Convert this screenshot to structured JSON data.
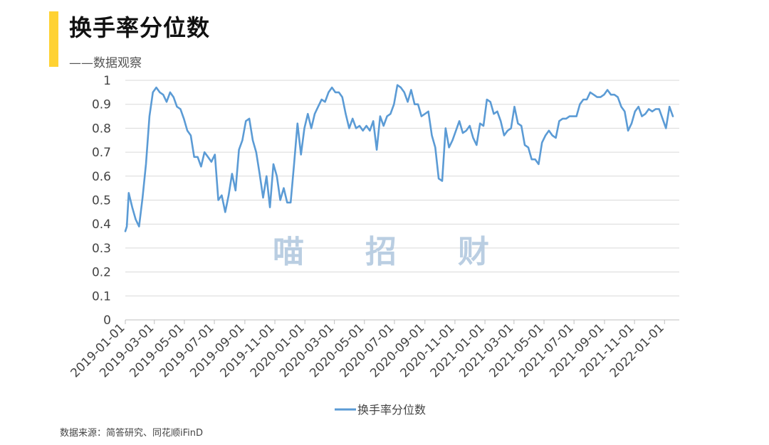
{
  "header": {
    "title": "换手率分位数",
    "subtitle": "——数据观察"
  },
  "watermark": [
    "喵",
    "招",
    "财"
  ],
  "source": "数据来源：简答研究、同花顺iFinD",
  "colors": {
    "accent": "#FFD232",
    "line": "#5B9BD5",
    "grid": "#D9D9D9"
  },
  "chart_data": {
    "type": "line",
    "title": "",
    "xlabel": "",
    "ylabel": "",
    "ylim": [
      0,
      1
    ],
    "yticks": [
      "0",
      "0.1",
      "0.2",
      "0.3",
      "0.4",
      "0.5",
      "0.6",
      "0.7",
      "0.8",
      "0.9",
      "1"
    ],
    "xticks": [
      "2019-01-01",
      "2019-03-01",
      "2019-05-01",
      "2019-07-01",
      "2019-09-01",
      "2019-11-01",
      "2020-01-01",
      "2020-03-01",
      "2020-05-01",
      "2020-07-01",
      "2020-09-01",
      "2020-11-01",
      "2021-01-01",
      "2021-03-01",
      "2021-05-01",
      "2021-07-01",
      "2021-09-01",
      "2021-11-01",
      "2022-01-01"
    ],
    "xrange": [
      "2019-01-01",
      "2022-01-31"
    ],
    "grid": true,
    "legend_position": "bottom",
    "series": [
      {
        "name": "换手率分位数",
        "color": "#5B9BD5",
        "points": [
          [
            "2019-01-01",
            0.37
          ],
          [
            "2019-01-04",
            0.39
          ],
          [
            "2019-01-08",
            0.53
          ],
          [
            "2019-01-15",
            0.47
          ],
          [
            "2019-01-22",
            0.42
          ],
          [
            "2019-01-29",
            0.39
          ],
          [
            "2019-02-05",
            0.51
          ],
          [
            "2019-02-12",
            0.65
          ],
          [
            "2019-02-19",
            0.85
          ],
          [
            "2019-02-26",
            0.95
          ],
          [
            "2019-03-05",
            0.97
          ],
          [
            "2019-03-12",
            0.95
          ],
          [
            "2019-03-19",
            0.94
          ],
          [
            "2019-03-26",
            0.91
          ],
          [
            "2019-04-02",
            0.95
          ],
          [
            "2019-04-09",
            0.93
          ],
          [
            "2019-04-16",
            0.89
          ],
          [
            "2019-04-23",
            0.88
          ],
          [
            "2019-04-30",
            0.84
          ],
          [
            "2019-05-07",
            0.79
          ],
          [
            "2019-05-14",
            0.77
          ],
          [
            "2019-05-21",
            0.68
          ],
          [
            "2019-05-28",
            0.68
          ],
          [
            "2019-06-04",
            0.64
          ],
          [
            "2019-06-11",
            0.7
          ],
          [
            "2019-06-18",
            0.68
          ],
          [
            "2019-06-25",
            0.66
          ],
          [
            "2019-07-02",
            0.69
          ],
          [
            "2019-07-09",
            0.5
          ],
          [
            "2019-07-16",
            0.52
          ],
          [
            "2019-07-23",
            0.45
          ],
          [
            "2019-07-30",
            0.52
          ],
          [
            "2019-08-06",
            0.61
          ],
          [
            "2019-08-13",
            0.54
          ],
          [
            "2019-08-20",
            0.71
          ],
          [
            "2019-08-27",
            0.75
          ],
          [
            "2019-09-03",
            0.83
          ],
          [
            "2019-09-10",
            0.84
          ],
          [
            "2019-09-17",
            0.75
          ],
          [
            "2019-09-24",
            0.7
          ],
          [
            "2019-10-01",
            0.61
          ],
          [
            "2019-10-08",
            0.51
          ],
          [
            "2019-10-15",
            0.6
          ],
          [
            "2019-10-22",
            0.47
          ],
          [
            "2019-10-29",
            0.65
          ],
          [
            "2019-11-05",
            0.6
          ],
          [
            "2019-11-12",
            0.5
          ],
          [
            "2019-11-19",
            0.55
          ],
          [
            "2019-11-26",
            0.49
          ],
          [
            "2019-12-03",
            0.49
          ],
          [
            "2019-12-10",
            0.65
          ],
          [
            "2019-12-17",
            0.82
          ],
          [
            "2019-12-24",
            0.69
          ],
          [
            "2019-12-31",
            0.8
          ],
          [
            "2020-01-07",
            0.86
          ],
          [
            "2020-01-14",
            0.8
          ],
          [
            "2020-01-21",
            0.86
          ],
          [
            "2020-01-28",
            0.89
          ],
          [
            "2020-02-04",
            0.92
          ],
          [
            "2020-02-11",
            0.91
          ],
          [
            "2020-02-18",
            0.95
          ],
          [
            "2020-02-25",
            0.97
          ],
          [
            "2020-03-03",
            0.95
          ],
          [
            "2020-03-10",
            0.95
          ],
          [
            "2020-03-17",
            0.93
          ],
          [
            "2020-03-24",
            0.86
          ],
          [
            "2020-03-31",
            0.8
          ],
          [
            "2020-04-07",
            0.84
          ],
          [
            "2020-04-14",
            0.8
          ],
          [
            "2020-04-21",
            0.81
          ],
          [
            "2020-04-28",
            0.79
          ],
          [
            "2020-05-05",
            0.81
          ],
          [
            "2020-05-12",
            0.79
          ],
          [
            "2020-05-19",
            0.83
          ],
          [
            "2020-05-26",
            0.71
          ],
          [
            "2020-06-02",
            0.85
          ],
          [
            "2020-06-09",
            0.81
          ],
          [
            "2020-06-16",
            0.85
          ],
          [
            "2020-06-23",
            0.86
          ],
          [
            "2020-06-30",
            0.9
          ],
          [
            "2020-07-07",
            0.98
          ],
          [
            "2020-07-14",
            0.97
          ],
          [
            "2020-07-21",
            0.95
          ],
          [
            "2020-07-28",
            0.91
          ],
          [
            "2020-08-04",
            0.96
          ],
          [
            "2020-08-11",
            0.9
          ],
          [
            "2020-08-18",
            0.9
          ],
          [
            "2020-08-25",
            0.85
          ],
          [
            "2020-09-01",
            0.86
          ],
          [
            "2020-09-08",
            0.87
          ],
          [
            "2020-09-15",
            0.77
          ],
          [
            "2020-09-22",
            0.72
          ],
          [
            "2020-09-29",
            0.59
          ],
          [
            "2020-10-06",
            0.58
          ],
          [
            "2020-10-13",
            0.8
          ],
          [
            "2020-10-20",
            0.72
          ],
          [
            "2020-10-27",
            0.75
          ],
          [
            "2020-11-03",
            0.79
          ],
          [
            "2020-11-10",
            0.83
          ],
          [
            "2020-11-17",
            0.78
          ],
          [
            "2020-11-24",
            0.79
          ],
          [
            "2020-12-01",
            0.81
          ],
          [
            "2020-12-08",
            0.76
          ],
          [
            "2020-12-15",
            0.73
          ],
          [
            "2020-12-22",
            0.82
          ],
          [
            "2020-12-29",
            0.81
          ],
          [
            "2021-01-05",
            0.92
          ],
          [
            "2021-01-12",
            0.91
          ],
          [
            "2021-01-19",
            0.86
          ],
          [
            "2021-01-26",
            0.87
          ],
          [
            "2021-02-02",
            0.83
          ],
          [
            "2021-02-09",
            0.77
          ],
          [
            "2021-02-16",
            0.79
          ],
          [
            "2021-02-23",
            0.8
          ],
          [
            "2021-03-02",
            0.89
          ],
          [
            "2021-03-09",
            0.82
          ],
          [
            "2021-03-16",
            0.81
          ],
          [
            "2021-03-23",
            0.73
          ],
          [
            "2021-03-30",
            0.72
          ],
          [
            "2021-04-06",
            0.67
          ],
          [
            "2021-04-13",
            0.67
          ],
          [
            "2021-04-20",
            0.65
          ],
          [
            "2021-04-27",
            0.74
          ],
          [
            "2021-05-04",
            0.77
          ],
          [
            "2021-05-11",
            0.79
          ],
          [
            "2021-05-18",
            0.77
          ],
          [
            "2021-05-25",
            0.76
          ],
          [
            "2021-06-01",
            0.83
          ],
          [
            "2021-06-08",
            0.84
          ],
          [
            "2021-06-15",
            0.84
          ],
          [
            "2021-06-22",
            0.85
          ],
          [
            "2021-06-29",
            0.85
          ],
          [
            "2021-07-06",
            0.85
          ],
          [
            "2021-07-13",
            0.9
          ],
          [
            "2021-07-20",
            0.92
          ],
          [
            "2021-07-27",
            0.92
          ],
          [
            "2021-08-03",
            0.95
          ],
          [
            "2021-08-10",
            0.94
          ],
          [
            "2021-08-17",
            0.93
          ],
          [
            "2021-08-24",
            0.93
          ],
          [
            "2021-08-31",
            0.94
          ],
          [
            "2021-09-07",
            0.96
          ],
          [
            "2021-09-14",
            0.94
          ],
          [
            "2021-09-21",
            0.94
          ],
          [
            "2021-09-28",
            0.93
          ],
          [
            "2021-10-05",
            0.89
          ],
          [
            "2021-10-12",
            0.87
          ],
          [
            "2021-10-19",
            0.79
          ],
          [
            "2021-10-26",
            0.82
          ],
          [
            "2021-11-02",
            0.87
          ],
          [
            "2021-11-09",
            0.89
          ],
          [
            "2021-11-16",
            0.85
          ],
          [
            "2021-11-23",
            0.86
          ],
          [
            "2021-11-30",
            0.88
          ],
          [
            "2021-12-07",
            0.87
          ],
          [
            "2021-12-14",
            0.88
          ],
          [
            "2021-12-21",
            0.88
          ],
          [
            "2021-12-28",
            0.84
          ],
          [
            "2022-01-04",
            0.8
          ],
          [
            "2022-01-11",
            0.89
          ],
          [
            "2022-01-18",
            0.85
          ]
        ]
      }
    ]
  }
}
